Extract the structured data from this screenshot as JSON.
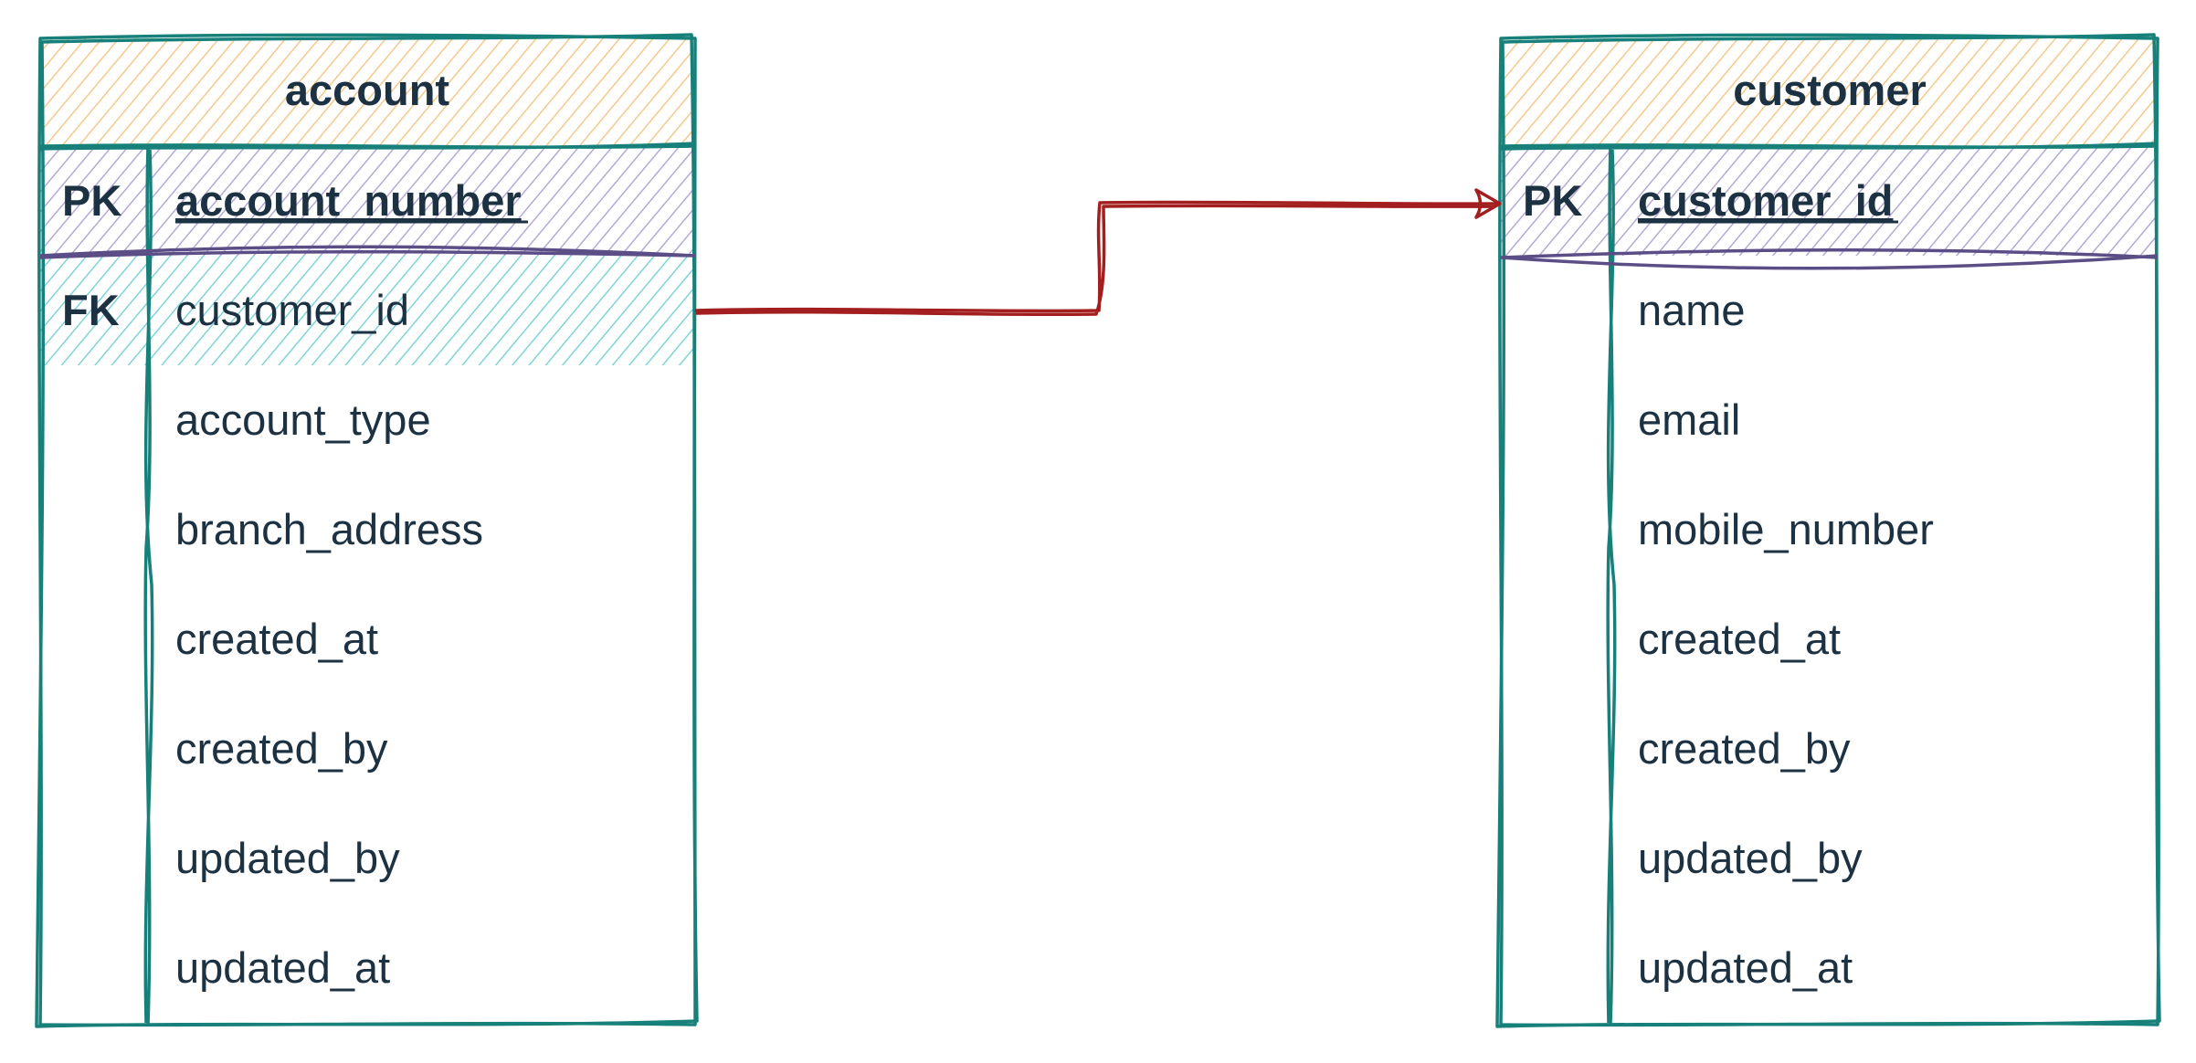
{
  "colors": {
    "frame": "#17807a",
    "header_fill": "#f6c98a",
    "pk_fill": "#b5a9d6",
    "fk_fill": "#7fd3da",
    "separator": "#5b4d86",
    "relationship": "#a31f1f",
    "text": "#1c3142"
  },
  "tables": {
    "account": {
      "title": "account",
      "rows": [
        {
          "key": "PK",
          "field": "account_number"
        },
        {
          "key": "FK",
          "field": "customer_id"
        },
        {
          "key": "",
          "field": "account_type"
        },
        {
          "key": "",
          "field": "branch_address"
        },
        {
          "key": "",
          "field": "created_at"
        },
        {
          "key": "",
          "field": "created_by"
        },
        {
          "key": "",
          "field": "updated_by"
        },
        {
          "key": "",
          "field": "updated_at"
        }
      ]
    },
    "customer": {
      "title": "customer",
      "rows": [
        {
          "key": "PK",
          "field": "customer_id"
        },
        {
          "key": "",
          "field": "name"
        },
        {
          "key": "",
          "field": "email"
        },
        {
          "key": "",
          "field": "mobile_number"
        },
        {
          "key": "",
          "field": "created_at"
        },
        {
          "key": "",
          "field": "created_by"
        },
        {
          "key": "",
          "field": "updated_by"
        },
        {
          "key": "",
          "field": "updated_at"
        }
      ]
    }
  },
  "relationship": {
    "from": "account.customer_id",
    "to": "customer.customer_id"
  }
}
